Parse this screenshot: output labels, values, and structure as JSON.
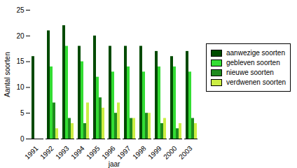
{
  "chart_data": {
    "type": "bar",
    "x_label": "jaar",
    "y_label": "Aantal soorten",
    "categories": [
      "1991",
      "1992",
      "1993",
      "1994",
      "1995",
      "1996",
      "1997",
      "1998",
      "1999",
      "2000",
      "2003"
    ],
    "series": [
      {
        "name": "aanwezige soorten",
        "color": "#004a00",
        "values": [
          16,
          21,
          22,
          18,
          20,
          18,
          18,
          18,
          17,
          16,
          17
        ]
      },
      {
        "name": "gebleven soorten",
        "color": "#33dd33",
        "values": [
          null,
          14,
          18,
          15,
          12,
          13,
          14,
          13,
          14,
          14,
          13
        ]
      },
      {
        "name": "nieuwe soorten",
        "color": "#1f8a1f",
        "values": [
          null,
          7,
          4,
          3,
          8,
          5,
          4,
          5,
          3,
          2,
          4
        ]
      },
      {
        "name": "verdwenen soorten",
        "color": "#ccee44",
        "values": [
          null,
          2,
          3,
          7,
          6,
          7,
          4,
          5,
          4,
          3,
          3
        ]
      }
    ],
    "ylim": [
      0,
      25
    ],
    "yticks": [
      0,
      5,
      10,
      15,
      20,
      25
    ],
    "grid": false,
    "legend": "right"
  }
}
